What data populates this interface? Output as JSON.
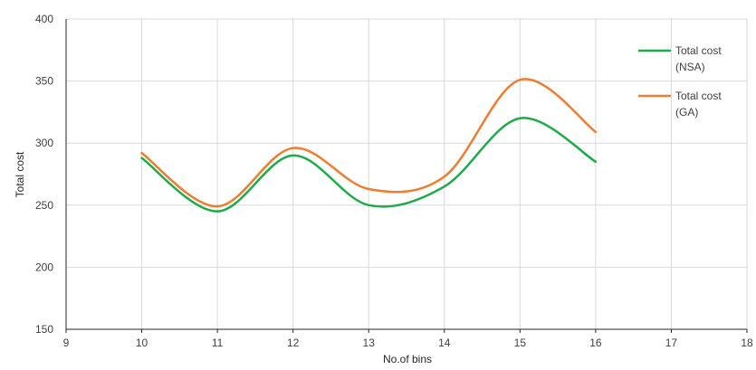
{
  "chart_data": {
    "type": "line",
    "smooth": true,
    "title": "",
    "xlabel": "No.of bins",
    "ylabel": "Total cost",
    "xlim": [
      9,
      18
    ],
    "ylim": [
      150,
      400
    ],
    "x_ticks": [
      9,
      10,
      11,
      12,
      13,
      14,
      15,
      16,
      17,
      18
    ],
    "y_ticks": [
      150,
      200,
      250,
      300,
      350,
      400
    ],
    "grid": "vertical-and-horizontal",
    "legend_position": "top-right",
    "x": [
      10,
      11,
      12,
      13,
      14,
      15,
      16
    ],
    "series": [
      {
        "name_lines": [
          "Total cost",
          "(NSA)"
        ],
        "color": "#1faa4a",
        "values": [
          288,
          245,
          290,
          250,
          265,
          320,
          285
        ]
      },
      {
        "name_lines": [
          "Total cost",
          "(GA)"
        ],
        "color": "#ed7d31",
        "values": [
          292,
          249,
          296,
          263,
          273,
          351,
          309
        ]
      }
    ]
  }
}
